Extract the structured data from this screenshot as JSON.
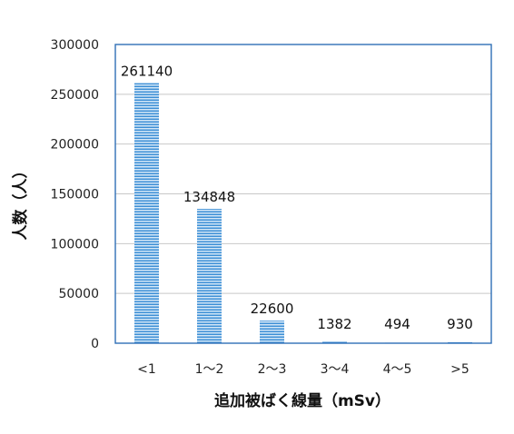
{
  "chart_data": {
    "type": "bar",
    "categories": [
      "<1",
      "1～2",
      "2～3",
      "3～4",
      "4～5",
      ">5"
    ],
    "values": [
      261140,
      134848,
      22600,
      1382,
      494,
      930
    ],
    "data_labels": [
      "261140",
      "134848",
      "22600",
      "1382",
      "494",
      "930"
    ],
    "xlabel": "追加被ばく線量（mSv）",
    "ylabel": "人数（人）",
    "ylim": [
      0,
      300000
    ],
    "yticks": [
      0,
      50000,
      100000,
      150000,
      200000,
      250000,
      300000
    ],
    "ytick_labels": [
      "0",
      "50000",
      "100000",
      "150000",
      "200000",
      "250000",
      "300000"
    ],
    "grid": true,
    "colors": {
      "bar_light": "#d4e7f7",
      "bar_dark": "#3d8fd6",
      "frame": "#2f6fb6",
      "grid": "#c8c8c8"
    }
  }
}
